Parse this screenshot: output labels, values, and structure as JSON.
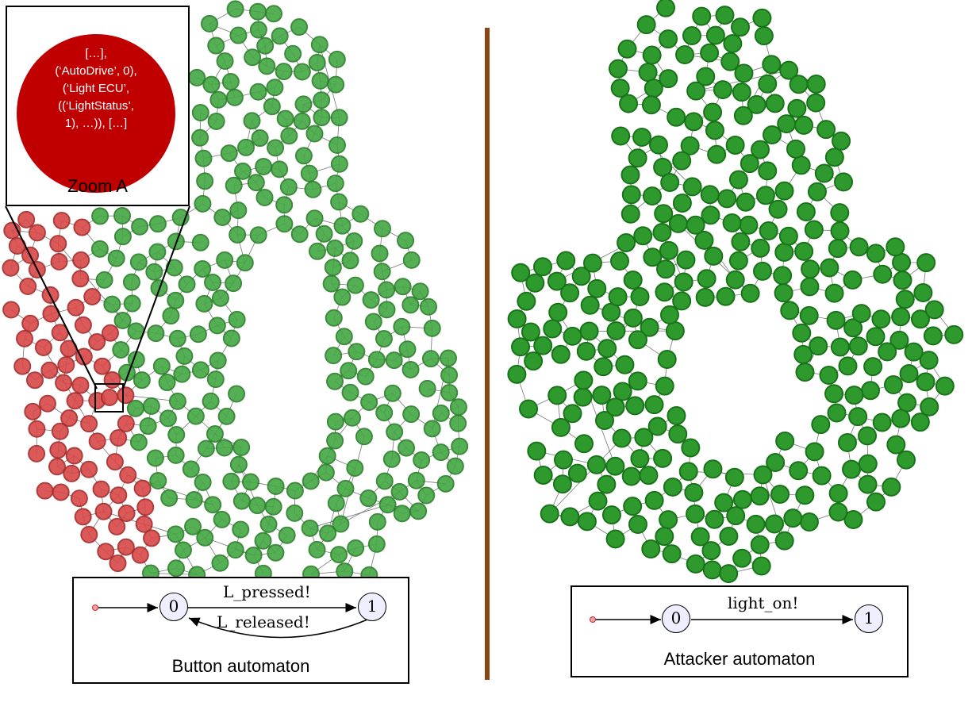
{
  "zoom": {
    "caption": "Zoom A",
    "node_text": "[…],\n(‘AutoDrive’, 0),\n(‘Light ECU’,\n((‘LightStatus’,\n1), …)), […]"
  },
  "button_automaton": {
    "caption": "Button automaton",
    "states": [
      "0",
      "1"
    ],
    "transitions": [
      "L_pressed!",
      "L_released!"
    ]
  },
  "attacker_automaton": {
    "caption": "Attacker automaton",
    "states": [
      "0",
      "1"
    ],
    "transitions": [
      "light_on!"
    ]
  },
  "colors": {
    "normal_state": "#2e9a2e",
    "highlighted_state": "#d84848",
    "zoom_node": "#c00000",
    "divider": "#8b4513"
  }
}
